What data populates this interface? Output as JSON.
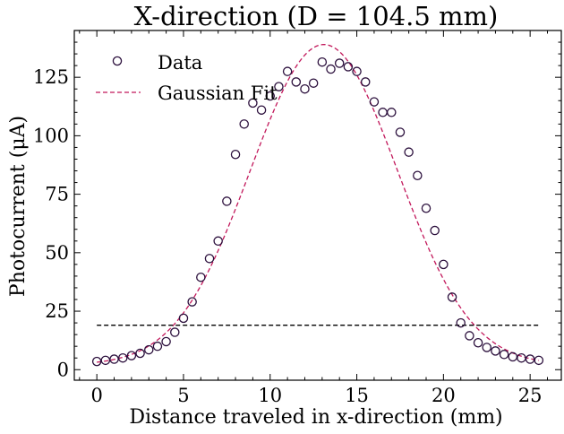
{
  "chart_data": {
    "type": "scatter",
    "title": "X-direction (D = 104.5 mm)",
    "xlabel": "Distance traveled in x-direction (mm)",
    "ylabel": "Photocurrent (μA)",
    "xlim": [
      -1.3,
      26.8
    ],
    "ylim": [
      -4.5,
      145
    ],
    "xticks": [
      0,
      5,
      10,
      15,
      20,
      25
    ],
    "yticks": [
      0,
      25,
      50,
      75,
      100,
      125
    ],
    "grid": false,
    "legend_position": "top-left",
    "series": [
      {
        "name": "Data",
        "kind": "markers",
        "color": "#2b0f3c",
        "x": [
          0,
          0.5,
          1,
          1.5,
          2,
          2.5,
          3,
          3.5,
          4,
          4.5,
          5,
          5.5,
          6,
          6.5,
          7,
          7.5,
          8,
          8.5,
          9,
          9.5,
          10,
          10.5,
          11,
          11.5,
          12,
          12.5,
          13,
          13.5,
          14,
          14.5,
          15,
          15.5,
          16,
          16.5,
          17,
          17.5,
          18,
          18.5,
          19,
          19.5,
          20,
          20.5,
          21,
          21.5,
          22,
          22.5,
          23,
          23.5,
          24,
          24.5,
          25,
          25.5
        ],
        "y": [
          3.5,
          4,
          4.5,
          5,
          6,
          7,
          8.5,
          10,
          12,
          16,
          22,
          29,
          39.5,
          47.5,
          55,
          72,
          92,
          105,
          114,
          111,
          117,
          121,
          127.5,
          123,
          120,
          122.5,
          131.5,
          128.5,
          131,
          129.5,
          127.5,
          123,
          114.5,
          110,
          110,
          101.5,
          93,
          83,
          69,
          59.5,
          45,
          31,
          20,
          14.5,
          11.5,
          9.5,
          8,
          6.5,
          5.5,
          5,
          4.5,
          4
        ]
      },
      {
        "name": "Gaussian Fit",
        "kind": "dashed-line",
        "color": "#c2185b",
        "amplitude": 137,
        "center": 13.1,
        "sigma": 4.25,
        "offset": 2
      },
      {
        "name": "",
        "kind": "dashed-line",
        "color": "#000000",
        "x": [
          0,
          25.5
        ],
        "y": [
          19,
          19
        ]
      }
    ]
  }
}
